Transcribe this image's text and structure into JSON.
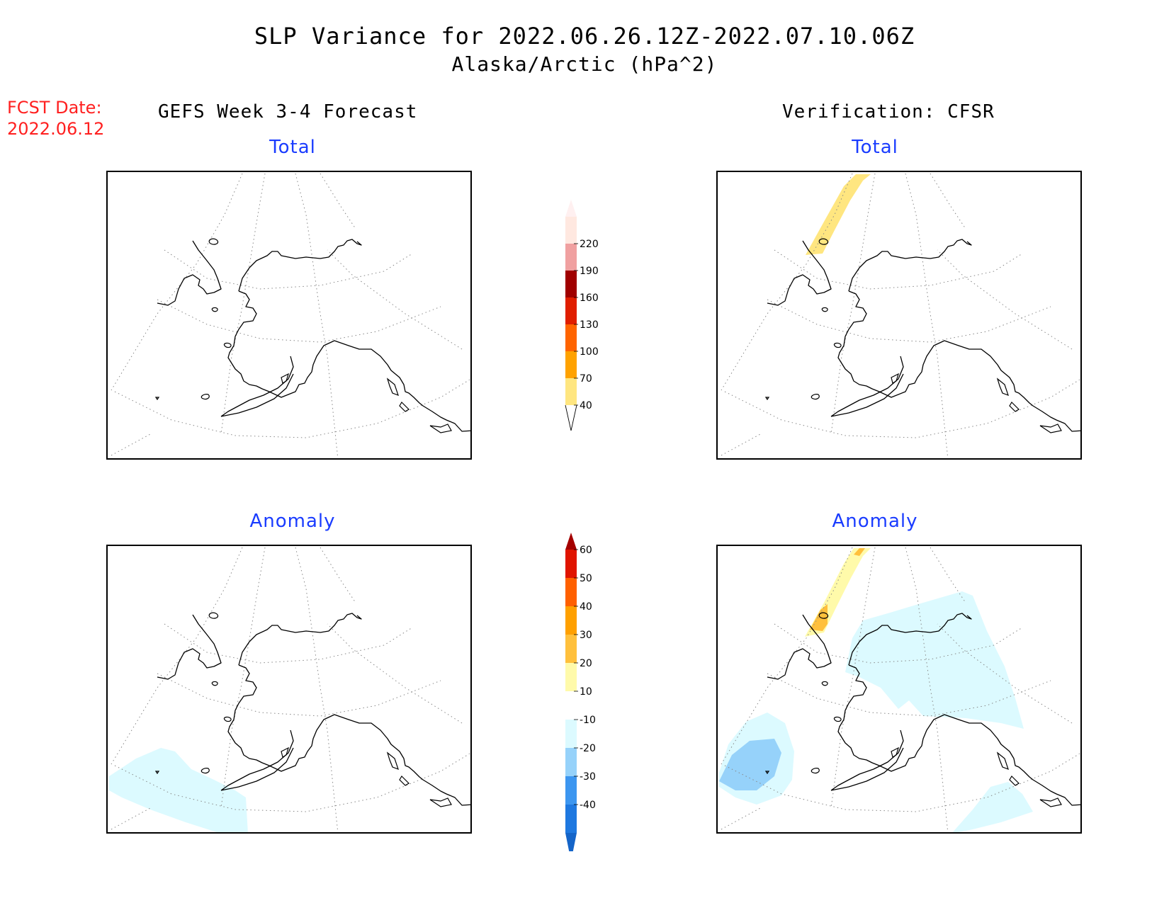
{
  "header": {
    "title": "SLP Variance for 2022.06.26.12Z-2022.07.10.06Z",
    "subtitle": "Alaska/Arctic (hPa^2)"
  },
  "fcst": {
    "label": "FCST Date:",
    "date": "2022.06.12"
  },
  "columns": {
    "left": "GEFS Week 3-4 Forecast",
    "right": "Verification: CFSR"
  },
  "panels": {
    "forecast_total": "Total",
    "verification_total": "Total",
    "forecast_anomaly": "Anomaly",
    "verification_anomaly": "Anomaly"
  },
  "total_colorbar": {
    "labels": [
      "40",
      "70",
      "100",
      "130",
      "160",
      "190",
      "220"
    ],
    "colors": [
      "#ffe680",
      "#ffa200",
      "#ff6400",
      "#e01e00",
      "#a00000",
      "#f0a0a0",
      "#ffe8e0"
    ],
    "under_color": "#ffffff",
    "over_color": "#fff0f0"
  },
  "anomaly_colorbar": {
    "labels": [
      "-40",
      "-30",
      "-20",
      "-10",
      "10",
      "20",
      "30",
      "40",
      "50",
      "60"
    ],
    "colors": [
      "#1e78e0",
      "#3c96f0",
      "#96d2fa",
      "#dcfaff",
      "#ffffff",
      "#fffaaa",
      "#ffc03c",
      "#ffa000",
      "#ff6000",
      "#e01400"
    ],
    "under_color": "#1464c8",
    "over_color": "#a50000"
  },
  "shading": {
    "light_blue": "#dcfaff",
    "mid_blue": "#96d2fa",
    "pale_yellow": "#fffaaa",
    "yellow": "#ffe680",
    "orange": "#ffc03c",
    "dark_orange": "#ffa000"
  }
}
